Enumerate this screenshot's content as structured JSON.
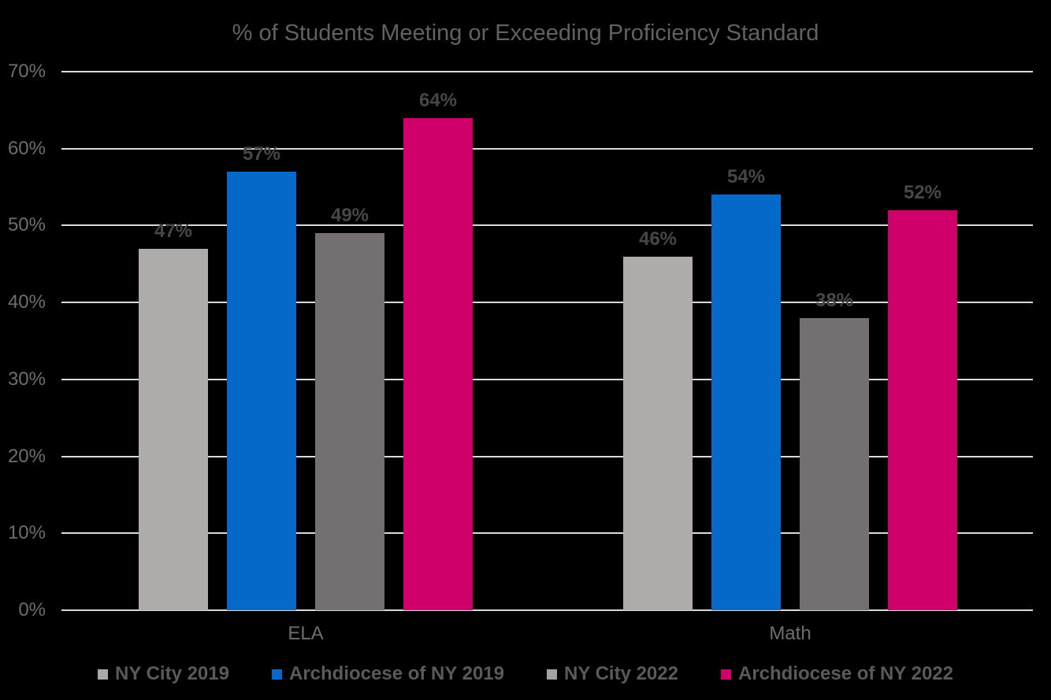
{
  "chart_data": {
    "type": "bar",
    "title": "% of Students Meeting or Exceeding Proficiency Standard",
    "categories": [
      "ELA",
      "Math"
    ],
    "series": [
      {
        "name": "NY City 2019",
        "color": "#AFABAB",
        "swatch": "#ACA8A9",
        "values": [
          47,
          46
        ]
      },
      {
        "name": "Archdiocese of NY 2019",
        "color": "#0569C9",
        "swatch": "#0569C9",
        "values": [
          57,
          54
        ]
      },
      {
        "name": "NY City 2022",
        "color": "#747071",
        "swatch": "#A5A1A2",
        "values": [
          49,
          38
        ]
      },
      {
        "name": "Archdiocese of NY 2022",
        "color": "#D0006A",
        "swatch": "#D0006A",
        "values": [
          64,
          52
        ]
      }
    ],
    "data_label_format": "{v}%",
    "y_axis": {
      "min": 0,
      "max": 70,
      "step": 10,
      "ticks": [
        "0%",
        "10%",
        "20%",
        "30%",
        "40%",
        "50%",
        "60%",
        "70%"
      ]
    },
    "grid": true,
    "legend_position": "bottom"
  },
  "colors": {
    "background": "#000000",
    "gridline": "#D9D9D9",
    "title_text": "#616161",
    "tick_text": "#6F6D6D",
    "category_text": "#6F6D6D",
    "data_label_text": "#474747",
    "legend_text": "#5A5A5A"
  }
}
